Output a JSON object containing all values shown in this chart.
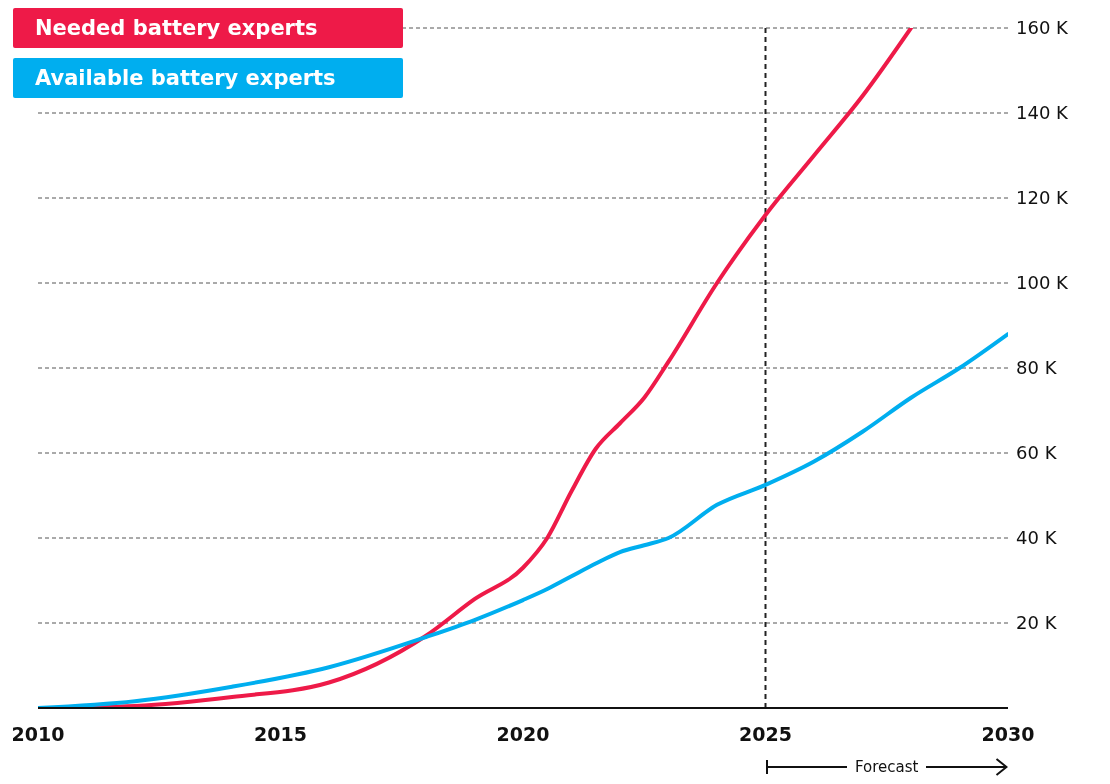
{
  "chart_data": {
    "type": "line",
    "x": [
      2010,
      2012,
      2014,
      2016,
      2018,
      2019,
      2020,
      2020.5,
      2021,
      2021.5,
      2022,
      2022.5,
      2023,
      2024,
      2025,
      2026,
      2027,
      2028,
      2029,
      2030
    ],
    "series": [
      {
        "name": "Needed battery experts",
        "color": "#ee1a48",
        "values": [
          0,
          0.5,
          2.6,
          6,
          17,
          25.6,
          33,
          40,
          51,
          61,
          67,
          73,
          81.5,
          100,
          116,
          130,
          144,
          160,
          null,
          null
        ]
      },
      {
        "name": "Available battery experts",
        "color": "#00aeef",
        "values": [
          0,
          1.6,
          5,
          9.6,
          16.7,
          20.7,
          25.4,
          28,
          31,
          34,
          36.7,
          38.3,
          40,
          47.8,
          52.5,
          58,
          65,
          73,
          80,
          88
        ]
      }
    ],
    "xlim": [
      2010,
      2030
    ],
    "xticks": [
      2010,
      2015,
      2020,
      2025,
      2030
    ],
    "ylim": [
      0,
      160
    ],
    "yticks": [
      {
        "value": 20,
        "label": "20 K"
      },
      {
        "value": 40,
        "label": "40 K"
      },
      {
        "value": 60,
        "label": "60 K"
      },
      {
        "value": 80,
        "label": "80 K"
      },
      {
        "value": 100,
        "label": "100 K"
      },
      {
        "value": 120,
        "label": "120 K"
      },
      {
        "value": 140,
        "label": "140 K"
      },
      {
        "value": 160,
        "label": "160 K"
      }
    ],
    "grid": "y",
    "legend": "top left",
    "marker": "none",
    "line_style": "solid",
    "ref_lines": [
      {
        "axis": "x",
        "value": 2025,
        "color": "#222222",
        "line_style": "dashed"
      }
    ],
    "annotations": [
      "Forecast"
    ]
  }
}
